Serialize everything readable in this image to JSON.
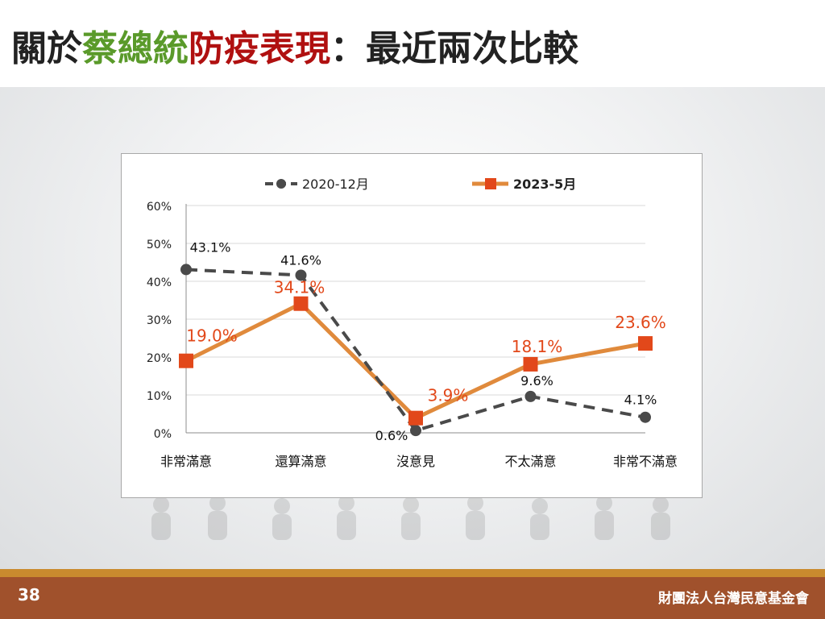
{
  "title": {
    "part1": "關於",
    "part2": "蔡總統",
    "part3": "防疫表現",
    "part4": "：最近兩次比較"
  },
  "colors": {
    "title_green": "#5a9a2a",
    "title_red": "#b01010",
    "series_2020": "#4a4a4a",
    "series_2023_line": "#e08a3c",
    "series_2023_marker": "#e2481a",
    "series_2023_label": "#e2481a",
    "footer_brown": "#a0512c",
    "footer_stripe": "#c98a2e"
  },
  "chart_data": {
    "type": "line",
    "categories": [
      "非常滿意",
      "還算滿意",
      "沒意見",
      "不太滿意",
      "非常不滿意"
    ],
    "yticks": [
      "0%",
      "10%",
      "20%",
      "30%",
      "40%",
      "50%",
      "60%"
    ],
    "ylim": [
      0,
      60
    ],
    "grid": true,
    "legend_position": "top",
    "series": [
      {
        "name": "2020-12月",
        "values": [
          43.1,
          41.6,
          0.6,
          9.6,
          4.1
        ],
        "labels": [
          "43.1%",
          "41.6%",
          "0.6%",
          "9.6%",
          "4.1%"
        ],
        "style": "dashed",
        "marker": "circle"
      },
      {
        "name": "2023-5月",
        "values": [
          19.0,
          34.1,
          3.9,
          18.1,
          23.6
        ],
        "labels": [
          "19.0%",
          "34.1%",
          "3.9%",
          "18.1%",
          "23.6%"
        ],
        "style": "solid",
        "marker": "square"
      }
    ]
  },
  "footer": {
    "page_number": "38",
    "organization": "財團法人台灣民意基金會"
  }
}
